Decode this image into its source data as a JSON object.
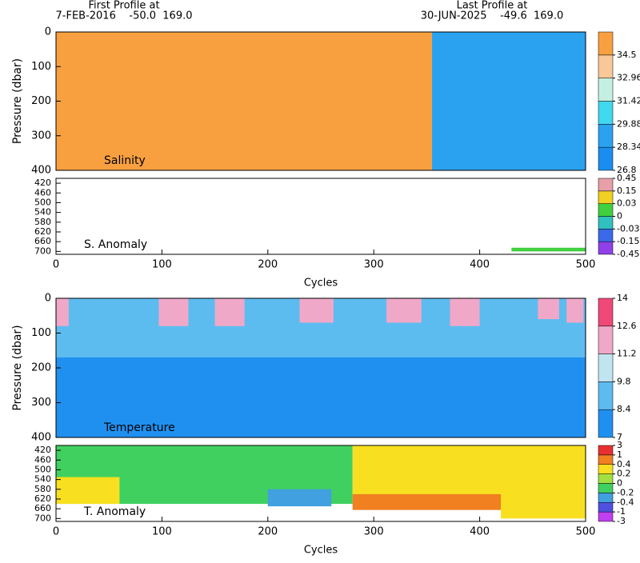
{
  "header": {
    "first_title": "First Profile at",
    "first_info": "7-FEB-2016    -50.0  169.0",
    "last_title": "Last Profile at",
    "last_info": "30-JUN-2025    -49.6  169.0"
  },
  "chart_data": [
    {
      "type": "contour",
      "label": "Salinity",
      "ylabel": "Pressure (dbar)",
      "xlim": [
        0,
        500
      ],
      "ylim": [
        0,
        400
      ],
      "y_inverted": true,
      "yticks": [
        0,
        100,
        200,
        300,
        400
      ],
      "colorbar": {
        "levels": [
          26.8,
          28.34,
          29.88,
          31.42,
          32.96,
          34.5
        ],
        "colors": [
          "#1a8ef0",
          "#2aa2f0",
          "#40d8f0",
          "#c4f0e4",
          "#f8c898",
          "#f8a040"
        ]
      },
      "regions": [
        {
          "x": [
            0,
            355
          ],
          "p": [
            0,
            400
          ],
          "value": 34.6
        },
        {
          "x": [
            355,
            500
          ],
          "p": [
            0,
            400
          ],
          "value": 28.5
        }
      ]
    },
    {
      "type": "contour",
      "label": "S. Anomaly",
      "xlabel": "Cycles",
      "xlim": [
        0,
        500
      ],
      "ylim": [
        400,
        712
      ],
      "y_inverted": true,
      "yticks": [
        420,
        460,
        500,
        540,
        580,
        620,
        660,
        700
      ],
      "xticks": [
        0,
        100,
        200,
        300,
        400,
        500
      ],
      "colorbar": {
        "levels": [
          -0.45,
          -0.15,
          -0.03,
          0,
          0.03,
          0.15,
          0.45
        ],
        "colors": [
          "#9040e8",
          "#3a6ae8",
          "#30c0c0",
          "#40d040",
          "#f0d020",
          "#e8a0a8"
        ]
      },
      "regions": [
        {
          "x": [
            430,
            500
          ],
          "p": [
            685,
            700
          ],
          "value": 0.01
        }
      ]
    },
    {
      "type": "contour",
      "label": "Temperature",
      "ylabel": "Pressure (dbar)",
      "xlim": [
        0,
        500
      ],
      "ylim": [
        0,
        400
      ],
      "y_inverted": true,
      "yticks": [
        0,
        100,
        200,
        300,
        400
      ],
      "colorbar": {
        "levels": [
          7,
          8.4,
          9.8,
          11.2,
          12.6,
          14
        ],
        "colors": [
          "#2090f0",
          "#5cbcf0",
          "#c0e4f0",
          "#f0a8c8",
          "#f04878"
        ]
      },
      "regions": [
        {
          "x": [
            0,
            500
          ],
          "p": [
            0,
            400
          ],
          "value": 7.5
        },
        {
          "x": [
            0,
            500
          ],
          "p": [
            0,
            170
          ],
          "value": 9
        },
        {
          "x": [
            0,
            12
          ],
          "p": [
            0,
            80
          ],
          "value": 11.5
        },
        {
          "x": [
            97,
            125
          ],
          "p": [
            0,
            80
          ],
          "value": 12
        },
        {
          "x": [
            150,
            178
          ],
          "p": [
            0,
            80
          ],
          "value": 11.5
        },
        {
          "x": [
            230,
            262
          ],
          "p": [
            0,
            70
          ],
          "value": 11.5
        },
        {
          "x": [
            312,
            345
          ],
          "p": [
            0,
            70
          ],
          "value": 11.5
        },
        {
          "x": [
            372,
            400
          ],
          "p": [
            0,
            80
          ],
          "value": 12
        },
        {
          "x": [
            455,
            475
          ],
          "p": [
            0,
            60
          ],
          "value": 11.5
        },
        {
          "x": [
            482,
            498
          ],
          "p": [
            0,
            70
          ],
          "value": 11.5
        }
      ]
    },
    {
      "type": "contour",
      "label": "T. Anomaly",
      "xlabel": "Cycles",
      "xlim": [
        0,
        500
      ],
      "ylim": [
        400,
        712
      ],
      "y_inverted": true,
      "yticks": [
        420,
        460,
        500,
        540,
        580,
        620,
        660,
        700
      ],
      "xticks": [
        0,
        100,
        200,
        300,
        400,
        500
      ],
      "colorbar": {
        "levels": [
          -3,
          -1,
          -0.4,
          -0.2,
          0,
          0.2,
          0.4,
          1,
          3
        ],
        "colors": [
          "#c040f0",
          "#5050e0",
          "#40a0e0",
          "#40d060",
          "#a0e040",
          "#f8e020",
          "#f08020",
          "#e83030"
        ]
      },
      "regions": [
        {
          "x": [
            0,
            280
          ],
          "p": [
            400,
            640
          ],
          "value": -0.1
        },
        {
          "x": [
            0,
            60
          ],
          "p": [
            530,
            640
          ],
          "value": 0.3
        },
        {
          "x": [
            200,
            260
          ],
          "p": [
            580,
            650
          ],
          "value": -0.3
        },
        {
          "x": [
            280,
            500
          ],
          "p": [
            400,
            650
          ],
          "value": 0.3
        },
        {
          "x": [
            280,
            420
          ],
          "p": [
            600,
            665
          ],
          "value": 0.5
        },
        {
          "x": [
            420,
            500
          ],
          "p": [
            640,
            700
          ],
          "value": 0.3
        }
      ]
    }
  ]
}
